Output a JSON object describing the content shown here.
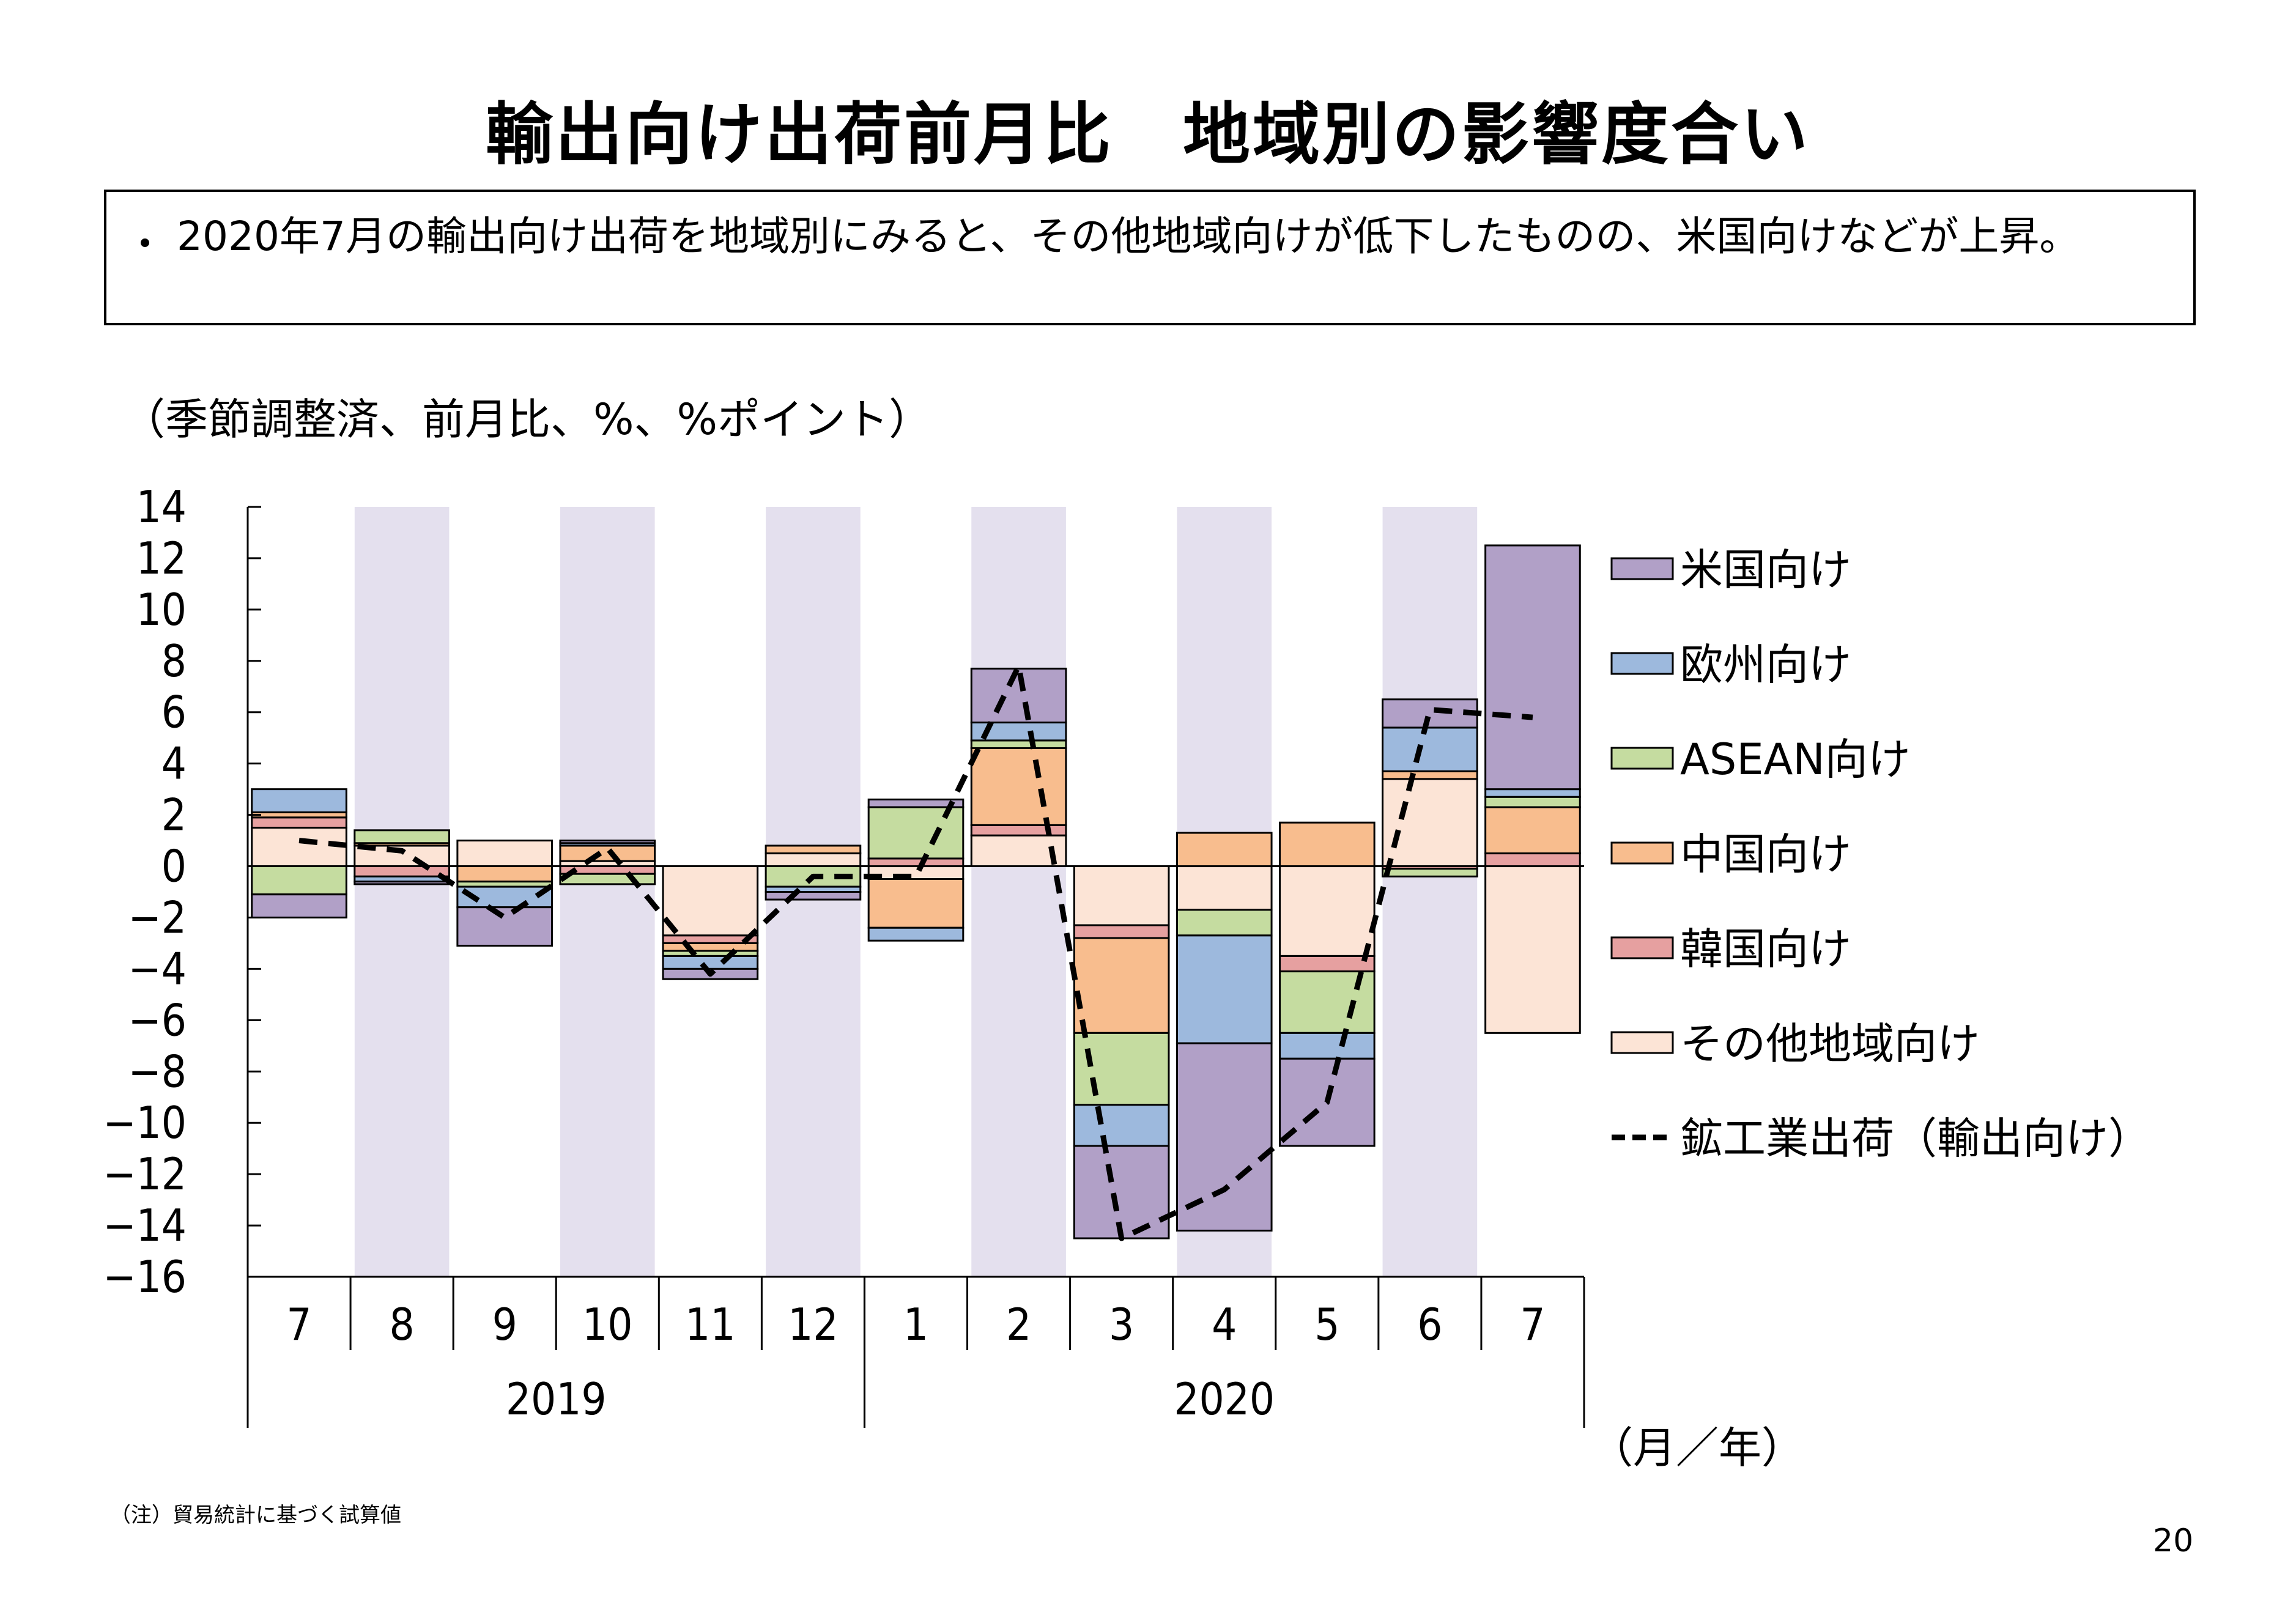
{
  "page": {
    "title": "輸出向け出荷前月比　地域別の影響度合い",
    "summary_bullet": "・",
    "summary": "2020年7月の輸出向け出荷を地域別にみると、その他地域向けが低下したものの、米国向けなどが上昇。",
    "unit_note": "（季節調整済、前月比、%、%ポイント）",
    "axis_unit": "（月／年）",
    "footnote": "（注）貿易統計に基づく試算値",
    "page_number": "20"
  },
  "chart_data": {
    "type": "bar",
    "stacked": true,
    "categories": [
      "7",
      "8",
      "9",
      "10",
      "11",
      "12",
      "1",
      "2",
      "3",
      "4",
      "5",
      "6",
      "7"
    ],
    "year_groups": [
      {
        "label": "2019",
        "span": [
          0,
          5
        ]
      },
      {
        "label": "2020",
        "span": [
          6,
          12
        ]
      }
    ],
    "ylim": [
      -16,
      14
    ],
    "yticks": [
      14,
      12,
      10,
      8,
      6,
      4,
      2,
      0,
      -2,
      -4,
      -6,
      -8,
      -10,
      -12,
      -14,
      -16
    ],
    "ytick_labels": [
      "14",
      "12",
      "10",
      "8",
      "6",
      "4",
      "2",
      "0",
      "−2",
      "−4",
      "−6",
      "−8",
      "−10",
      "−12",
      "−14",
      "−16"
    ],
    "shaded_categories": [
      1,
      3,
      5,
      7,
      9,
      11
    ],
    "series": [
      {
        "name": "その他地域向け",
        "color": "#FCE4D6",
        "values": [
          1.5,
          0.8,
          1.0,
          0.2,
          -2.7,
          0.5,
          -0.5,
          1.2,
          -2.3,
          -1.7,
          -3.5,
          3.4,
          -6.5
        ]
      },
      {
        "name": "韓国向け",
        "color": "#E6A0A0",
        "values": [
          0.4,
          -0.4,
          0.0,
          -0.3,
          -0.3,
          0.0,
          0.3,
          0.4,
          -0.5,
          0.0,
          -0.6,
          -0.1,
          0.5
        ]
      },
      {
        "name": "中国向け",
        "color": "#F8BD8E",
        "values": [
          0.2,
          0.1,
          -0.6,
          0.6,
          -0.3,
          0.3,
          -1.9,
          3.0,
          -3.7,
          1.3,
          1.7,
          0.3,
          1.8
        ]
      },
      {
        "name": "ASEAN向け",
        "color": "#C5DCA0",
        "values": [
          -1.1,
          0.5,
          -0.2,
          -0.4,
          -0.2,
          -0.8,
          2.0,
          0.3,
          -2.8,
          -1.0,
          -2.4,
          -0.3,
          0.4
        ]
      },
      {
        "name": "欧州向け",
        "color": "#9DB9DD",
        "values": [
          0.9,
          -0.2,
          -0.8,
          0.1,
          -0.5,
          -0.2,
          -0.5,
          0.7,
          -1.6,
          -4.2,
          -1.0,
          1.7,
          0.3
        ]
      },
      {
        "name": "米国向け",
        "color": "#B1A0C7",
        "values": [
          -0.9,
          -0.1,
          -1.5,
          0.1,
          -0.4,
          -0.3,
          0.3,
          2.1,
          -3.6,
          -7.3,
          -3.4,
          1.1,
          9.5
        ]
      }
    ],
    "line": {
      "name": "鉱工業出荷（輸出向け）",
      "color": "#000000",
      "style": "dashed",
      "values": [
        1.0,
        0.6,
        -2.0,
        0.7,
        -4.2,
        -0.4,
        -0.4,
        7.8,
        -14.5,
        -12.6,
        -9.2,
        6.1,
        5.8
      ]
    },
    "legend": {
      "placement": "right",
      "order": [
        "米国向け",
        "欧州向け",
        "ASEAN向け",
        "中国向け",
        "韓国向け",
        "その他地域向け",
        "鉱工業出荷（輸出向け）"
      ]
    }
  }
}
